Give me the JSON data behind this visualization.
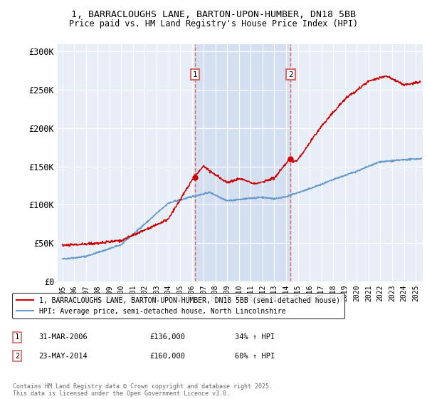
{
  "title_line1": "1, BARRACLOUGHS LANE, BARTON-UPON-HUMBER, DN18 5BB",
  "title_line2": "Price paid vs. HM Land Registry's House Price Index (HPI)",
  "ylabel_ticks": [
    "£0",
    "£50K",
    "£100K",
    "£150K",
    "£200K",
    "£250K",
    "£300K"
  ],
  "ytick_values": [
    0,
    50000,
    100000,
    150000,
    200000,
    250000,
    300000
  ],
  "ylim": [
    0,
    310000
  ],
  "xlim_start": 1994.6,
  "xlim_end": 2025.6,
  "xtick_years": [
    1995,
    1996,
    1997,
    1998,
    1999,
    2000,
    2001,
    2002,
    2003,
    2004,
    2005,
    2006,
    2007,
    2008,
    2009,
    2010,
    2011,
    2012,
    2013,
    2014,
    2015,
    2016,
    2017,
    2018,
    2019,
    2020,
    2021,
    2022,
    2023,
    2024,
    2025
  ],
  "sale1_x": 2006.25,
  "sale1_y": 136000,
  "sale1_label": "31-MAR-2006",
  "sale1_price": "£136,000",
  "sale1_hpi": "34% ↑ HPI",
  "sale2_x": 2014.39,
  "sale2_y": 160000,
  "sale2_label": "23-MAY-2014",
  "sale2_price": "£160,000",
  "sale2_hpi": "60% ↑ HPI",
  "red_color": "#cc0000",
  "blue_color": "#6699cc",
  "bg_color": "#e8eef8",
  "shade_color": "#d0ddf0",
  "grid_color": "#ffffff",
  "dashed_color": "#dd6666",
  "legend_label_red": "1, BARRACLOUGHS LANE, BARTON-UPON-HUMBER, DN18 5BB (semi-detached house)",
  "legend_label_blue": "HPI: Average price, semi-detached house, North Lincolnshire",
  "footer": "Contains HM Land Registry data © Crown copyright and database right 2025.\nThis data is licensed under the Open Government Licence v3.0.",
  "annotation1": "1",
  "annotation2": "2",
  "ann_y": 270000
}
